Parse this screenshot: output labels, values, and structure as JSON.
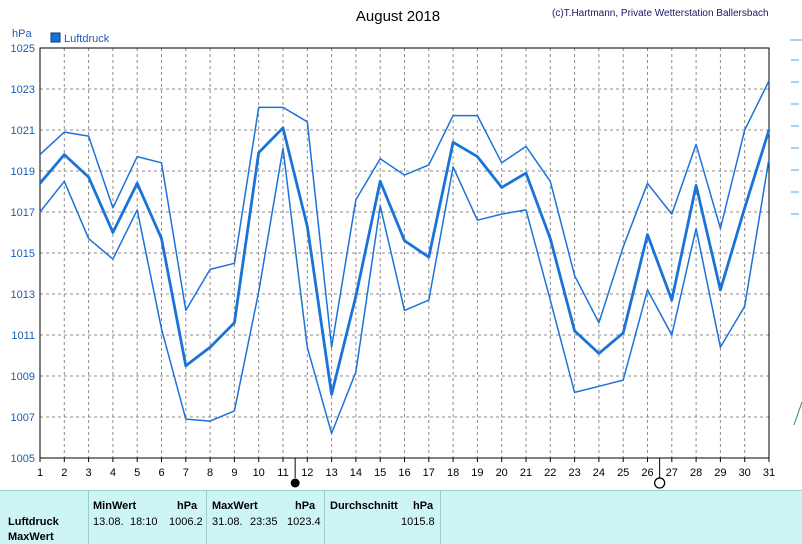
{
  "chart_data": {
    "type": "line",
    "title": "August 2018",
    "credit": "(c)T.Hartmann, Private Wetterstation Ballersbach",
    "ylabel": "hPa",
    "ylim": [
      1005,
      1025
    ],
    "yticks": [
      1005,
      1007,
      1009,
      1011,
      1013,
      1015,
      1017,
      1019,
      1021,
      1023,
      1025
    ],
    "x": [
      1,
      2,
      3,
      4,
      5,
      6,
      7,
      8,
      9,
      10,
      11,
      12,
      13,
      14,
      15,
      16,
      17,
      18,
      19,
      20,
      21,
      22,
      23,
      24,
      25,
      26,
      27,
      28,
      29,
      30,
      31
    ],
    "legend": {
      "label": "Luftdruck",
      "color": "#1a73d9",
      "position": "top-left"
    },
    "grid": true,
    "markers": [
      {
        "x": 11.5,
        "symbol": "new-moon"
      },
      {
        "x": 26.5,
        "symbol": "full-moon"
      }
    ],
    "series": [
      {
        "role": "max",
        "width": 1.5,
        "values": [
          1019.8,
          1020.9,
          1020.7,
          1017.2,
          1019.7,
          1019.4,
          1012.2,
          1014.2,
          1014.5,
          1022.1,
          1022.1,
          1021.4,
          1010.4,
          1017.6,
          1019.6,
          1018.8,
          1019.3,
          1021.7,
          1021.7,
          1019.4,
          1020.2,
          1018.5,
          1013.9,
          1011.6,
          1015.3,
          1018.4,
          1016.9,
          1020.3,
          1016.2,
          1021.0,
          1023.4
        ]
      },
      {
        "role": "avg",
        "width": 2.8,
        "values": [
          1018.4,
          1019.8,
          1018.7,
          1016.0,
          1018.4,
          1015.7,
          1009.5,
          1010.4,
          1011.6,
          1019.9,
          1021.1,
          1016.3,
          1008.1,
          1012.9,
          1018.5,
          1015.6,
          1014.8,
          1020.4,
          1019.7,
          1018.2,
          1018.9,
          1015.7,
          1011.2,
          1010.1,
          1011.1,
          1015.9,
          1012.7,
          1018.3,
          1013.2,
          1017.2,
          1021.0
        ]
      },
      {
        "role": "min",
        "width": 1.5,
        "values": [
          1017.0,
          1018.5,
          1015.7,
          1014.7,
          1017.1,
          1011.3,
          1006.9,
          1006.8,
          1007.3,
          1013.1,
          1020.1,
          1010.4,
          1006.2,
          1009.2,
          1017.3,
          1012.2,
          1012.7,
          1019.2,
          1016.6,
          1016.9,
          1017.1,
          1012.7,
          1008.2,
          1008.5,
          1008.8,
          1013.2,
          1011.0,
          1016.2,
          1010.4,
          1012.4,
          1019.6
        ]
      }
    ]
  },
  "summary": {
    "row_label_1": "Luftdruck",
    "row_label_2": "MaxWert",
    "min": {
      "header": "MinWert",
      "unit": "hPa",
      "date": "13.08.",
      "time": "18:10",
      "value": "1006.2"
    },
    "max": {
      "header": "MaxWert",
      "unit": "hPa",
      "date": "31.08.",
      "time": "23:35",
      "value": "1023.4"
    },
    "avg": {
      "header": "Durchschnitt",
      "unit": "hPa",
      "value": "1015.8"
    }
  },
  "colors": {
    "series": "#1a73d9",
    "grid": "#8c8c8c",
    "axis_text": "#1a5fb4",
    "summary_bg": "#cdf5f5"
  }
}
